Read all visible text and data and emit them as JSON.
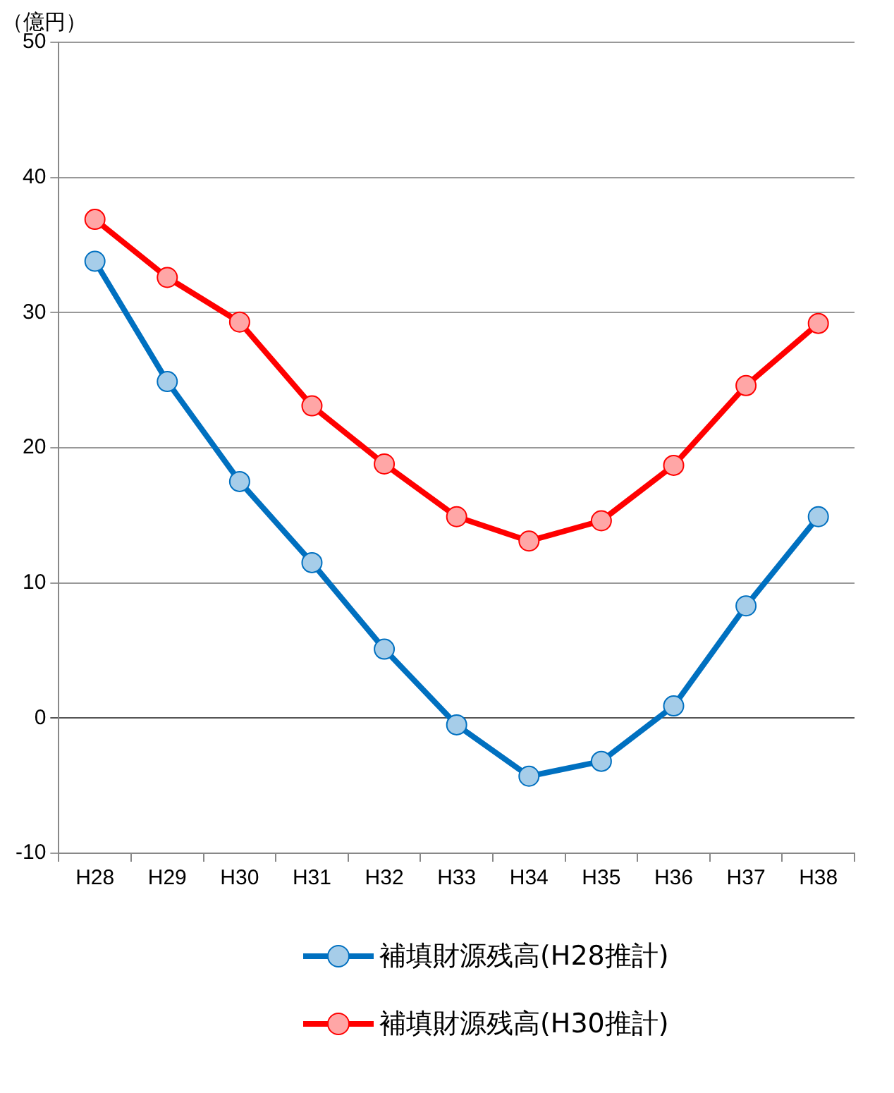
{
  "chart_data": {
    "type": "line",
    "ylabel": "（億円）",
    "categories": [
      "H28",
      "H29",
      "H30",
      "H31",
      "H32",
      "H33",
      "H34",
      "H35",
      "H36",
      "H37",
      "H38"
    ],
    "series": [
      {
        "name": "補填財源残高(H28推計)",
        "color": "#0070c0",
        "values": [
          33.8,
          24.9,
          17.5,
          11.5,
          5.1,
          -0.5,
          -4.3,
          -3.2,
          0.9,
          8.3,
          14.9
        ]
      },
      {
        "name": "補填財源残高(H30推計)",
        "color": "#ff0000",
        "values": [
          36.9,
          32.6,
          29.3,
          23.1,
          18.8,
          14.9,
          13.1,
          14.6,
          18.7,
          24.6,
          29.2
        ]
      }
    ],
    "ylim": [
      -10,
      50
    ],
    "yticks": [
      -10,
      0,
      10,
      20,
      30,
      40,
      50
    ],
    "grid": "y",
    "legend": "bottom",
    "marker": "circle",
    "line_style": "solid"
  }
}
